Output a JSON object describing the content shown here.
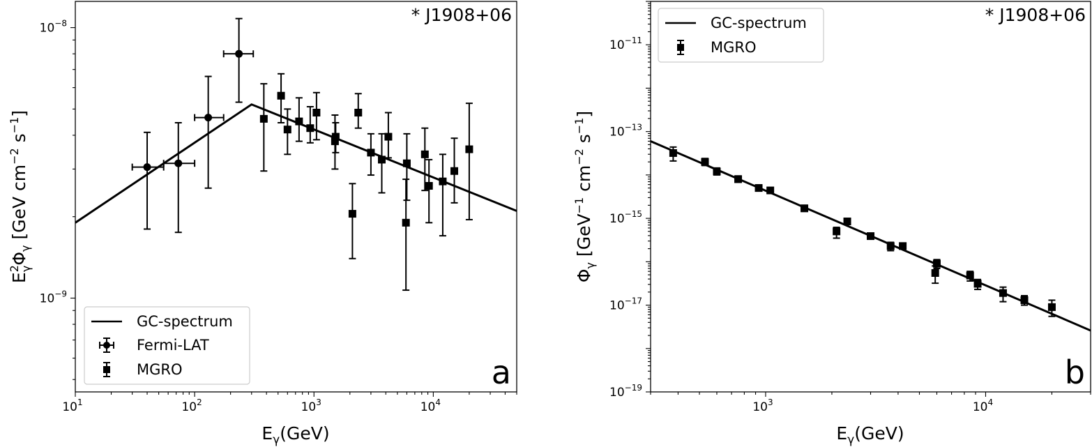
{
  "chart_data": [
    {
      "type": "scatter",
      "panel_label": "a",
      "annotation": "* J1908+06",
      "xlabel": "E",
      "xlabel_sub": "γ",
      "xlabel_unit": "(GeV)",
      "ylabel_parts": [
        "E",
        "2",
        "γ",
        "Φ",
        "γ",
        " [GeV cm",
        "−2",
        " s",
        "−1",
        "]"
      ],
      "xscale": "log",
      "yscale": "log",
      "xlim": [
        10,
        50000
      ],
      "ylim": [
        4.5e-10,
        1.25e-08
      ],
      "xticks": [
        {
          "value": 10,
          "base": "10",
          "exp": "1"
        },
        {
          "value": 100,
          "base": "10",
          "exp": "2"
        },
        {
          "value": 1000,
          "base": "10",
          "exp": "3"
        },
        {
          "value": 10000,
          "base": "10",
          "exp": "4"
        }
      ],
      "yticks": [
        {
          "value": 1e-09,
          "base": "10",
          "exp": "−9"
        },
        {
          "value": 1e-08,
          "base": "10",
          "exp": "−8"
        }
      ],
      "legend": {
        "position": "lower-left",
        "entries": [
          "GC-spectrum",
          "Fermi-LAT",
          "MGRO"
        ]
      },
      "series": [
        {
          "name": "GC-spectrum",
          "kind": "line",
          "x": [
            10,
            300,
            50000
          ],
          "y": [
            1.9e-09,
            5.2e-09,
            2.1e-09
          ]
        },
        {
          "name": "Fermi-LAT",
          "kind": "errorbar",
          "marker": "circle",
          "points": [
            {
              "x": 40,
              "y": 3.05e-09,
              "xlo": 30,
              "xhi": 55,
              "ylo": 1.8e-09,
              "yhi": 4.1e-09
            },
            {
              "x": 73,
              "y": 3.15e-09,
              "xlo": 55,
              "xhi": 100,
              "ylo": 1.75e-09,
              "yhi": 4.45e-09
            },
            {
              "x": 130,
              "y": 4.65e-09,
              "xlo": 100,
              "xhi": 175,
              "ylo": 2.55e-09,
              "yhi": 6.6e-09
            },
            {
              "x": 235,
              "y": 8e-09,
              "xlo": 175,
              "xhi": 310,
              "ylo": 5.3e-09,
              "yhi": 1.08e-08
            }
          ]
        },
        {
          "name": "MGRO",
          "kind": "errorbar",
          "marker": "square",
          "points": [
            {
              "x": 380,
              "y": 4.6e-09,
              "ylo": 2.95e-09,
              "yhi": 6.2e-09
            },
            {
              "x": 530,
              "y": 5.6e-09,
              "ylo": 4.45e-09,
              "yhi": 6.75e-09
            },
            {
              "x": 600,
              "y": 4.2e-09,
              "ylo": 3.4e-09,
              "yhi": 5e-09
            },
            {
              "x": 750,
              "y": 4.5e-09,
              "ylo": 3.8e-09,
              "yhi": 5.5e-09
            },
            {
              "x": 930,
              "y": 4.25e-09,
              "ylo": 3.75e-09,
              "yhi": 5.1e-09
            },
            {
              "x": 1050,
              "y": 4.85e-09,
              "ylo": 3.85e-09,
              "yhi": 5.75e-09
            },
            {
              "x": 1500,
              "y": 3.8e-09,
              "ylo": 3e-09,
              "yhi": 4.75e-09
            },
            {
              "x": 1520,
              "y": 3.95e-09,
              "ylo": 3.45e-09,
              "yhi": 4.45e-09
            },
            {
              "x": 2100,
              "y": 2.05e-09,
              "ylo": 1.4e-09,
              "yhi": 2.65e-09
            },
            {
              "x": 2350,
              "y": 4.85e-09,
              "ylo": 4.25e-09,
              "yhi": 5.7e-09
            },
            {
              "x": 3000,
              "y": 3.45e-09,
              "ylo": 2.85e-09,
              "yhi": 4.05e-09
            },
            {
              "x": 3700,
              "y": 3.25e-09,
              "ylo": 2.45e-09,
              "yhi": 4.05e-09
            },
            {
              "x": 4200,
              "y": 3.95e-09,
              "ylo": 3.3e-09,
              "yhi": 4.85e-09
            },
            {
              "x": 5900,
              "y": 1.9e-09,
              "ylo": 1.07e-09,
              "yhi": 2.75e-09
            },
            {
              "x": 6000,
              "y": 3.15e-09,
              "ylo": 2.3e-09,
              "yhi": 4.05e-09
            },
            {
              "x": 8500,
              "y": 3.4e-09,
              "ylo": 2.5e-09,
              "yhi": 4.25e-09
            },
            {
              "x": 9200,
              "y": 2.6e-09,
              "ylo": 1.9e-09,
              "yhi": 3.25e-09
            },
            {
              "x": 12000,
              "y": 2.7e-09,
              "ylo": 1.7e-09,
              "yhi": 3.4e-09
            },
            {
              "x": 15000,
              "y": 2.95e-09,
              "ylo": 2.25e-09,
              "yhi": 3.9e-09
            },
            {
              "x": 20000,
              "y": 3.55e-09,
              "ylo": 1.95e-09,
              "yhi": 5.25e-09
            }
          ]
        }
      ]
    },
    {
      "type": "scatter",
      "panel_label": "b",
      "annotation": "* J1908+06",
      "xlabel": "E",
      "xlabel_sub": "γ",
      "xlabel_unit": "(GeV)",
      "ylabel_parts": [
        "Φ",
        "γ",
        " [GeV",
        "−1",
        " cm",
        "−2",
        " s",
        "−1",
        "]"
      ],
      "xscale": "log",
      "yscale": "log",
      "xlim": [
        300,
        30000
      ],
      "ylim": [
        1e-19,
        1e-10
      ],
      "xticks": [
        {
          "value": 1000,
          "base": "10",
          "exp": "3"
        },
        {
          "value": 10000,
          "base": "10",
          "exp": "4"
        }
      ],
      "yticks": [
        {
          "value": 1e-19,
          "base": "10",
          "exp": "−19"
        },
        {
          "value": 1e-17,
          "base": "10",
          "exp": "−17"
        },
        {
          "value": 1e-15,
          "base": "10",
          "exp": "−15"
        },
        {
          "value": 1e-13,
          "base": "10",
          "exp": "−13"
        },
        {
          "value": 1e-11,
          "base": "10",
          "exp": "−11"
        }
      ],
      "legend": {
        "position": "upper-left",
        "entries": [
          "GC-spectrum",
          "MGRO"
        ]
      },
      "series": [
        {
          "name": "GC-spectrum",
          "kind": "line",
          "x": [
            300,
            30000
          ],
          "y": [
            6e-14,
            2.6e-18
          ]
        },
        {
          "name": "MGRO",
          "kind": "errorbar",
          "marker": "square",
          "points": [
            {
              "x": 380,
              "y": 3.2e-14,
              "ylo": 2.1e-14,
              "yhi": 4.4e-14
            },
            {
              "x": 530,
              "y": 2e-14,
              "ylo": 1.65e-14,
              "yhi": 2.4e-14
            },
            {
              "x": 600,
              "y": 1.2e-14,
              "ylo": 1e-14,
              "yhi": 1.45e-14
            },
            {
              "x": 750,
              "y": 8e-15,
              "ylo": 6.8e-15,
              "yhi": 9.5e-15
            },
            {
              "x": 930,
              "y": 5e-15,
              "ylo": 4.4e-15,
              "yhi": 5.9e-15
            },
            {
              "x": 1050,
              "y": 4.4e-15,
              "ylo": 3.8e-15,
              "yhi": 5.1e-15
            },
            {
              "x": 1500,
              "y": 1.7e-15,
              "ylo": 1.45e-15,
              "yhi": 2e-15
            },
            {
              "x": 2100,
              "y": 5e-16,
              "ylo": 3.5e-16,
              "yhi": 6.2e-16
            },
            {
              "x": 2350,
              "y": 8.5e-16,
              "ylo": 7.4e-16,
              "yhi": 9.8e-16
            },
            {
              "x": 3000,
              "y": 3.9e-16,
              "ylo": 3.3e-16,
              "yhi": 4.5e-16
            },
            {
              "x": 3700,
              "y": 2.3e-16,
              "ylo": 1.8e-16,
              "yhi": 2.8e-16
            },
            {
              "x": 4200,
              "y": 2.3e-16,
              "ylo": 1.95e-16,
              "yhi": 2.7e-16
            },
            {
              "x": 5900,
              "y": 5.5e-17,
              "ylo": 3.2e-17,
              "yhi": 8e-17
            },
            {
              "x": 6000,
              "y": 9e-17,
              "ylo": 7e-17,
              "yhi": 1.12e-16
            },
            {
              "x": 8500,
              "y": 4.8e-17,
              "ylo": 3.6e-17,
              "yhi": 6e-17
            },
            {
              "x": 9200,
              "y": 3.1e-17,
              "ylo": 2.3e-17,
              "yhi": 3.9e-17
            },
            {
              "x": 12000,
              "y": 1.9e-17,
              "ylo": 1.2e-17,
              "yhi": 2.6e-17
            },
            {
              "x": 15000,
              "y": 1.3e-17,
              "ylo": 1e-17,
              "yhi": 1.65e-17
            },
            {
              "x": 20000,
              "y": 9e-18,
              "ylo": 5.5e-18,
              "yhi": 1.3e-17
            }
          ]
        }
      ]
    }
  ]
}
